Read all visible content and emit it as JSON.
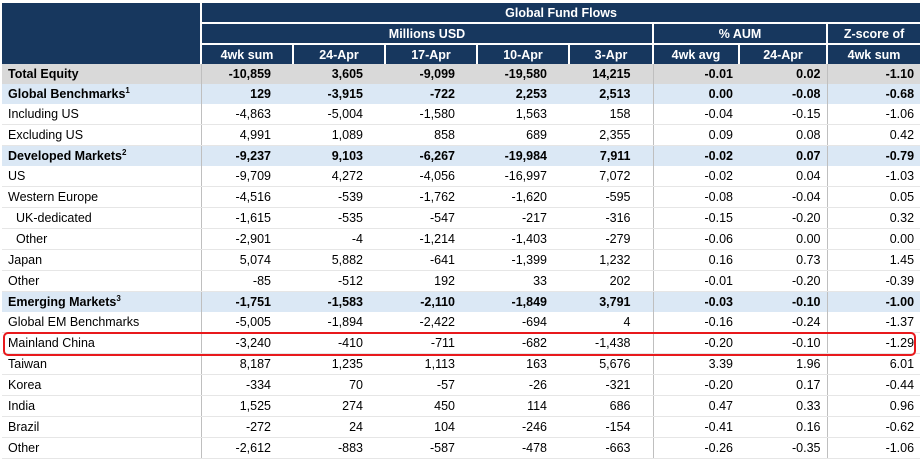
{
  "header": {
    "title": "Global Fund Flows",
    "group_millions": "Millions USD",
    "group_aum": "% AUM",
    "group_z_line1": "Z-score of",
    "columns": [
      "4wk sum",
      "24-Apr",
      "17-Apr",
      "10-Apr",
      "3-Apr",
      "4wk avg",
      "24-Apr",
      "4wk sum"
    ]
  },
  "rows": [
    {
      "name": "Total Equity",
      "sup": "",
      "style": "total",
      "indent": false,
      "v": [
        "-10,859",
        "3,605",
        "-9,099",
        "-19,580",
        "14,215",
        "-0.01",
        "0.02",
        "-1.10"
      ]
    },
    {
      "name": "Global Benchmarks",
      "sup": "1",
      "style": "hl",
      "indent": false,
      "v": [
        "129",
        "-3,915",
        "-722",
        "2,253",
        "2,513",
        "0.00",
        "-0.08",
        "-0.68"
      ]
    },
    {
      "name": "Including US",
      "sup": "",
      "style": "body",
      "indent": false,
      "v": [
        "-4,863",
        "-5,004",
        "-1,580",
        "1,563",
        "158",
        "-0.04",
        "-0.15",
        "-1.06"
      ]
    },
    {
      "name": "Excluding US",
      "sup": "",
      "style": "body",
      "indent": false,
      "v": [
        "4,991",
        "1,089",
        "858",
        "689",
        "2,355",
        "0.09",
        "0.08",
        "0.42"
      ]
    },
    {
      "name": "Developed Markets",
      "sup": "2",
      "style": "hl",
      "indent": false,
      "v": [
        "-9,237",
        "9,103",
        "-6,267",
        "-19,984",
        "7,911",
        "-0.02",
        "0.07",
        "-0.79"
      ]
    },
    {
      "name": "US",
      "sup": "",
      "style": "body",
      "indent": false,
      "v": [
        "-9,709",
        "4,272",
        "-4,056",
        "-16,997",
        "7,072",
        "-0.02",
        "0.04",
        "-1.03"
      ]
    },
    {
      "name": "Western Europe",
      "sup": "",
      "style": "body",
      "indent": false,
      "v": [
        "-4,516",
        "-539",
        "-1,762",
        "-1,620",
        "-595",
        "-0.08",
        "-0.04",
        "0.05"
      ]
    },
    {
      "name": "UK-dedicated",
      "sup": "",
      "style": "body",
      "indent": true,
      "v": [
        "-1,615",
        "-535",
        "-547",
        "-217",
        "-316",
        "-0.15",
        "-0.20",
        "0.32"
      ]
    },
    {
      "name": "Other",
      "sup": "",
      "style": "body",
      "indent": true,
      "v": [
        "-2,901",
        "-4",
        "-1,214",
        "-1,403",
        "-279",
        "-0.06",
        "0.00",
        "0.00"
      ]
    },
    {
      "name": "Japan",
      "sup": "",
      "style": "body",
      "indent": false,
      "v": [
        "5,074",
        "5,882",
        "-641",
        "-1,399",
        "1,232",
        "0.16",
        "0.73",
        "1.45"
      ]
    },
    {
      "name": "Other",
      "sup": "",
      "style": "body",
      "indent": false,
      "v": [
        "-85",
        "-512",
        "192",
        "33",
        "202",
        "-0.01",
        "-0.20",
        "-0.39"
      ]
    },
    {
      "name": "Emerging Markets",
      "sup": "3",
      "style": "hl",
      "indent": false,
      "v": [
        "-1,751",
        "-1,583",
        "-2,110",
        "-1,849",
        "3,791",
        "-0.03",
        "-0.10",
        "-1.00"
      ]
    },
    {
      "name": "Global EM Benchmarks",
      "sup": "",
      "style": "body",
      "indent": false,
      "v": [
        "-5,005",
        "-1,894",
        "-2,422",
        "-694",
        "4",
        "-0.16",
        "-0.24",
        "-1.37"
      ]
    },
    {
      "name": "Mainland China",
      "sup": "",
      "style": "body",
      "indent": false,
      "v": [
        "-3,240",
        "-410",
        "-711",
        "-682",
        "-1,438",
        "-0.20",
        "-0.10",
        "-1.29"
      ]
    },
    {
      "name": "Taiwan",
      "sup": "",
      "style": "body",
      "indent": false,
      "v": [
        "8,187",
        "1,235",
        "1,113",
        "163",
        "5,676",
        "3.39",
        "1.96",
        "6.01"
      ]
    },
    {
      "name": "Korea",
      "sup": "",
      "style": "body",
      "indent": false,
      "v": [
        "-334",
        "70",
        "-57",
        "-26",
        "-321",
        "-0.20",
        "0.17",
        "-0.44"
      ]
    },
    {
      "name": "India",
      "sup": "",
      "style": "body",
      "indent": false,
      "v": [
        "1,525",
        "274",
        "450",
        "114",
        "686",
        "0.47",
        "0.33",
        "0.96"
      ]
    },
    {
      "name": "Brazil",
      "sup": "",
      "style": "body",
      "indent": false,
      "v": [
        "-272",
        "24",
        "104",
        "-246",
        "-154",
        "-0.41",
        "0.16",
        "-0.62"
      ]
    },
    {
      "name": "Other",
      "sup": "",
      "style": "body",
      "indent": false,
      "v": [
        "-2,612",
        "-883",
        "-587",
        "-478",
        "-663",
        "-0.26",
        "-0.35",
        "-1.06"
      ]
    }
  ],
  "highlight": {
    "row_name": "Mainland China",
    "color": "#e8191c"
  },
  "colors": {
    "header_bg": "#17375e",
    "section_bg": "#dbe8f5",
    "total_bg": "#d9d9d9"
  }
}
